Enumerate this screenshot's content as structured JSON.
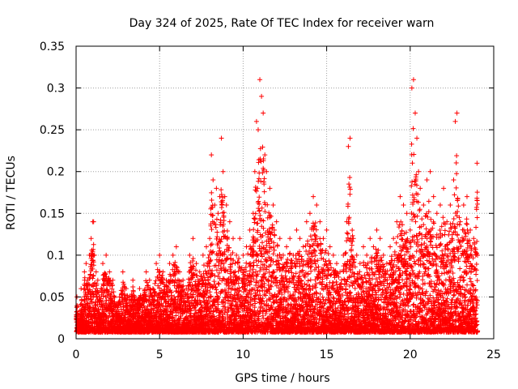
{
  "chart_data": {
    "type": "scatter",
    "title": "Day 324 of 2025, Rate Of TEC Index for receiver warn",
    "xlabel": "GPS time / hours",
    "ylabel": "ROTI / TECUs",
    "xlim": [
      0,
      25
    ],
    "ylim": [
      0,
      0.35
    ],
    "x_ticks": [
      "0",
      "5",
      "10",
      "15",
      "20",
      "25"
    ],
    "y_ticks": [
      "0",
      "0.05",
      "0.1",
      "0.15",
      "0.2",
      "0.25",
      "0.3",
      "0.35"
    ],
    "grid": true,
    "marker": "plus",
    "color": "#ff0000",
    "series": [
      {
        "x": [
          0.05,
          0.1,
          0.2,
          0.3,
          0.4,
          0.5,
          0.6,
          0.7,
          0.8,
          0.9,
          1.0,
          1.05,
          1.1,
          1.2,
          1.3,
          1.4,
          1.5,
          1.6,
          1.8,
          2.0,
          2.2,
          2.4,
          2.6,
          2.8,
          3.0,
          3.2,
          3.4,
          3.6,
          3.8,
          4.0,
          4.2,
          4.4,
          4.6,
          4.8,
          5.0,
          5.2,
          5.4,
          5.6,
          5.8,
          6.0,
          6.2,
          6.4,
          6.6,
          6.8,
          7.0,
          7.2,
          7.4,
          7.6,
          7.8,
          8.0,
          8.1,
          8.2,
          8.3,
          8.4,
          8.5,
          8.6,
          8.7,
          8.8,
          8.9,
          9.0,
          9.2,
          9.4,
          9.6,
          9.8,
          10.0,
          10.2,
          10.4,
          10.6,
          10.7,
          10.8,
          10.9,
          11.0,
          11.1,
          11.2,
          11.3,
          11.4,
          11.6,
          11.8,
          12.0,
          12.2,
          12.4,
          12.6,
          12.8,
          13.0,
          13.2,
          13.4,
          13.6,
          13.8,
          14.0,
          14.2,
          14.4,
          14.6,
          14.8,
          15.0,
          15.2,
          15.4,
          15.6,
          15.8,
          16.0,
          16.2,
          16.3,
          16.4,
          16.6,
          16.8,
          17.0,
          17.2,
          17.4,
          17.6,
          17.8,
          18.0,
          18.2,
          18.4,
          18.6,
          18.8,
          19.0,
          19.2,
          19.4,
          19.6,
          19.8,
          20.0,
          20.1,
          20.2,
          20.3,
          20.4,
          20.5,
          20.6,
          20.8,
          21.0,
          21.2,
          21.4,
          21.6,
          21.8,
          22.0,
          22.2,
          22.4,
          22.6,
          22.7,
          22.8,
          23.0,
          23.2,
          23.4,
          23.6,
          23.8,
          24.0
        ],
        "y": [
          0.05,
          0.03,
          0.02,
          0.06,
          0.04,
          0.08,
          0.09,
          0.07,
          0.1,
          0.12,
          0.14,
          0.14,
          0.1,
          0.08,
          0.07,
          0.05,
          0.06,
          0.09,
          0.1,
          0.08,
          0.07,
          0.04,
          0.05,
          0.08,
          0.06,
          0.05,
          0.07,
          0.04,
          0.06,
          0.05,
          0.08,
          0.07,
          0.06,
          0.09,
          0.1,
          0.08,
          0.07,
          0.09,
          0.1,
          0.11,
          0.08,
          0.07,
          0.06,
          0.1,
          0.12,
          0.09,
          0.08,
          0.1,
          0.11,
          0.12,
          0.22,
          0.19,
          0.16,
          0.18,
          0.15,
          0.17,
          0.24,
          0.2,
          0.17,
          0.16,
          0.14,
          0.12,
          0.1,
          0.12,
          0.1,
          0.11,
          0.13,
          0.15,
          0.2,
          0.26,
          0.25,
          0.31,
          0.29,
          0.27,
          0.22,
          0.2,
          0.18,
          0.16,
          0.14,
          0.12,
          0.1,
          0.11,
          0.12,
          0.1,
          0.13,
          0.12,
          0.11,
          0.14,
          0.15,
          0.17,
          0.16,
          0.14,
          0.12,
          0.13,
          0.11,
          0.1,
          0.09,
          0.08,
          0.1,
          0.14,
          0.23,
          0.24,
          0.12,
          0.1,
          0.09,
          0.11,
          0.1,
          0.12,
          0.11,
          0.13,
          0.12,
          0.1,
          0.09,
          0.11,
          0.12,
          0.14,
          0.17,
          0.16,
          0.15,
          0.13,
          0.3,
          0.31,
          0.27,
          0.24,
          0.2,
          0.18,
          0.16,
          0.19,
          0.2,
          0.17,
          0.15,
          0.16,
          0.18,
          0.14,
          0.16,
          0.19,
          0.26,
          0.27,
          0.14,
          0.16,
          0.17,
          0.13,
          0.12,
          0.21
        ],
        "y_min": 0.0,
        "note_density": "dense"
      }
    ]
  }
}
